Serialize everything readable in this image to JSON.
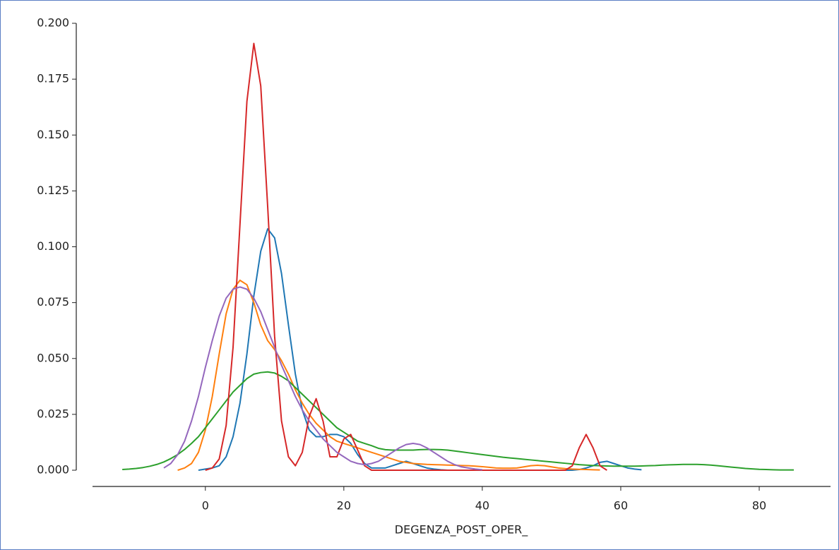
{
  "chart_data": {
    "type": "line",
    "x_label": "DEGENZA_POST_OPER_",
    "xlim": [
      -16.3,
      90.3
    ],
    "ylim": [
      0,
      0.2
    ],
    "xticks": [
      0,
      20,
      40,
      60,
      80
    ],
    "yticks": [
      {
        "value": 0,
        "label": "0.000"
      },
      {
        "value": 0.025,
        "label": "0.025"
      },
      {
        "value": 0.05,
        "label": "0.050"
      },
      {
        "value": 0.075,
        "label": "0.075"
      },
      {
        "value": 0.1,
        "label": "0.100"
      },
      {
        "value": 0.125,
        "label": "0.125"
      },
      {
        "value": 0.15,
        "label": "0.150"
      },
      {
        "value": 0.175,
        "label": "0.175"
      },
      {
        "value": 0.2,
        "label": "0.200"
      }
    ],
    "series": [
      {
        "color": "#1f77b4",
        "x": [
          -1,
          0,
          1,
          2,
          3,
          4,
          5,
          6,
          7,
          8,
          9,
          10,
          11,
          12,
          13,
          14,
          15,
          16,
          17,
          18,
          19,
          20,
          21,
          22,
          23,
          24,
          25,
          26,
          27,
          28,
          29,
          30,
          31,
          32,
          33,
          34,
          35,
          36,
          37,
          38,
          39,
          40,
          41,
          42,
          43,
          44,
          45,
          46,
          47,
          48,
          49,
          50,
          51,
          52,
          53,
          54,
          55,
          56,
          57,
          58,
          59,
          60,
          61,
          62,
          63
        ],
        "values": [
          0,
          0.0005,
          0.001,
          0.002,
          0.006,
          0.015,
          0.03,
          0.052,
          0.078,
          0.098,
          0.108,
          0.104,
          0.088,
          0.065,
          0.043,
          0.027,
          0.018,
          0.015,
          0.015,
          0.016,
          0.016,
          0.015,
          0.012,
          0.007,
          0.003,
          0.001,
          0.001,
          0.001,
          0.002,
          0.003,
          0.004,
          0.003,
          0.002,
          0.001,
          0.0005,
          0.0002,
          0,
          0,
          0,
          0,
          0,
          0,
          0,
          0,
          0,
          0,
          0,
          0,
          0,
          0,
          0,
          0,
          0,
          0,
          0,
          0.0003,
          0.001,
          0.002,
          0.0035,
          0.004,
          0.003,
          0.002,
          0.001,
          0.0005,
          0.0002
        ]
      },
      {
        "color": "#ff7f0e",
        "x": [
          -4,
          -3,
          -2,
          -1,
          0,
          1,
          2,
          3,
          4,
          5,
          6,
          7,
          8,
          9,
          10,
          11,
          12,
          13,
          14,
          15,
          16,
          17,
          18,
          19,
          20,
          21,
          22,
          23,
          24,
          25,
          26,
          27,
          28,
          29,
          30,
          31,
          32,
          33,
          34,
          35,
          36,
          37,
          38,
          39,
          40,
          41,
          42,
          43,
          44,
          45,
          46,
          47,
          48,
          49,
          50,
          51,
          52,
          53,
          54,
          55,
          56,
          57
        ],
        "values": [
          0,
          0.001,
          0.003,
          0.008,
          0.018,
          0.033,
          0.052,
          0.07,
          0.081,
          0.085,
          0.083,
          0.075,
          0.065,
          0.058,
          0.054,
          0.049,
          0.043,
          0.036,
          0.03,
          0.025,
          0.021,
          0.018,
          0.015,
          0.013,
          0.012,
          0.011,
          0.01,
          0.009,
          0.008,
          0.007,
          0.006,
          0.005,
          0.004,
          0.0035,
          0.003,
          0.0028,
          0.0026,
          0.0025,
          0.0024,
          0.0023,
          0.0022,
          0.0021,
          0.002,
          0.0018,
          0.0016,
          0.0013,
          0.001,
          0.0009,
          0.0009,
          0.001,
          0.0015,
          0.002,
          0.0022,
          0.002,
          0.0015,
          0.001,
          0.0007,
          0.0005,
          0.0004,
          0.0003,
          0.0002,
          0.0001
        ]
      },
      {
        "color": "#2ca02c",
        "x": [
          -12,
          -11,
          -10,
          -9,
          -8,
          -7,
          -6,
          -5,
          -4,
          -3,
          -2,
          -1,
          0,
          1,
          2,
          3,
          4,
          5,
          6,
          7,
          8,
          9,
          10,
          11,
          12,
          13,
          14,
          15,
          16,
          17,
          18,
          19,
          20,
          21,
          22,
          23,
          24,
          25,
          26,
          27,
          28,
          29,
          30,
          31,
          32,
          33,
          34,
          35,
          36,
          37,
          38,
          39,
          40,
          41,
          42,
          43,
          44,
          45,
          46,
          47,
          48,
          49,
          50,
          51,
          52,
          53,
          54,
          55,
          56,
          57,
          58,
          59,
          60,
          61,
          62,
          63,
          64,
          65,
          66,
          67,
          68,
          69,
          70,
          71,
          72,
          73,
          74,
          75,
          76,
          77,
          78,
          79,
          80,
          81,
          82,
          83,
          84,
          85
        ],
        "values": [
          0.0003,
          0.0005,
          0.0008,
          0.0012,
          0.0018,
          0.0026,
          0.0037,
          0.0052,
          0.007,
          0.0093,
          0.012,
          0.015,
          0.019,
          0.023,
          0.027,
          0.031,
          0.035,
          0.038,
          0.041,
          0.043,
          0.0437,
          0.044,
          0.0435,
          0.042,
          0.04,
          0.037,
          0.034,
          0.031,
          0.028,
          0.025,
          0.022,
          0.019,
          0.017,
          0.015,
          0.013,
          0.012,
          0.011,
          0.0098,
          0.0092,
          0.009,
          0.009,
          0.009,
          0.009,
          0.0092,
          0.0093,
          0.0093,
          0.0092,
          0.009,
          0.0086,
          0.0082,
          0.0078,
          0.0074,
          0.007,
          0.0066,
          0.0062,
          0.0058,
          0.0055,
          0.0052,
          0.0049,
          0.0046,
          0.0043,
          0.004,
          0.0037,
          0.0034,
          0.0031,
          0.0028,
          0.0025,
          0.0023,
          0.0021,
          0.002,
          0.0019,
          0.0018,
          0.0018,
          0.0018,
          0.0018,
          0.0019,
          0.002,
          0.0021,
          0.0023,
          0.0024,
          0.0025,
          0.0026,
          0.0026,
          0.0026,
          0.0025,
          0.0023,
          0.002,
          0.0017,
          0.0014,
          0.0011,
          0.0008,
          0.0006,
          0.0004,
          0.0003,
          0.0002,
          0.0001,
          0.0001,
          0.0001
        ]
      },
      {
        "color": "#d62728",
        "x": [
          0,
          1,
          2,
          3,
          4,
          5,
          6,
          7,
          8,
          9,
          10,
          11,
          12,
          13,
          14,
          15,
          16,
          17,
          18,
          19,
          20,
          21,
          22,
          23,
          24,
          25,
          26,
          27,
          28,
          29,
          30,
          31,
          32,
          33,
          34,
          35,
          36,
          37,
          38,
          39,
          40,
          41,
          42,
          43,
          44,
          45,
          46,
          47,
          48,
          49,
          50,
          51,
          52,
          53,
          54,
          55,
          56,
          57,
          58
        ],
        "values": [
          0,
          0.001,
          0.005,
          0.02,
          0.055,
          0.11,
          0.165,
          0.191,
          0.172,
          0.118,
          0.06,
          0.022,
          0.006,
          0.002,
          0.008,
          0.024,
          0.032,
          0.022,
          0.006,
          0.006,
          0.014,
          0.016,
          0.009,
          0.002,
          0,
          0,
          0,
          0,
          0,
          0,
          0,
          0,
          0,
          0,
          0,
          0,
          0,
          0,
          0,
          0,
          0,
          0,
          0,
          0,
          0,
          0,
          0,
          0,
          0,
          0,
          0,
          0,
          0,
          0.002,
          0.01,
          0.016,
          0.01,
          0.002,
          0
        ]
      },
      {
        "color": "#9467bd",
        "x": [
          -6,
          -5,
          -4,
          -3,
          -2,
          -1,
          0,
          1,
          2,
          3,
          4,
          5,
          6,
          7,
          8,
          9,
          10,
          11,
          12,
          13,
          14,
          15,
          16,
          17,
          18,
          19,
          20,
          21,
          22,
          23,
          24,
          25,
          26,
          27,
          28,
          29,
          30,
          31,
          32,
          33,
          34,
          35,
          36,
          37,
          38,
          39,
          40
        ],
        "values": [
          0.001,
          0.003,
          0.007,
          0.013,
          0.022,
          0.033,
          0.046,
          0.058,
          0.069,
          0.077,
          0.081,
          0.082,
          0.081,
          0.077,
          0.071,
          0.063,
          0.055,
          0.047,
          0.04,
          0.033,
          0.027,
          0.022,
          0.018,
          0.014,
          0.011,
          0.008,
          0.006,
          0.004,
          0.003,
          0.0025,
          0.003,
          0.004,
          0.006,
          0.008,
          0.01,
          0.0115,
          0.012,
          0.0115,
          0.01,
          0.008,
          0.006,
          0.004,
          0.0025,
          0.0015,
          0.001,
          0.0005,
          0.0002
        ]
      }
    ]
  }
}
